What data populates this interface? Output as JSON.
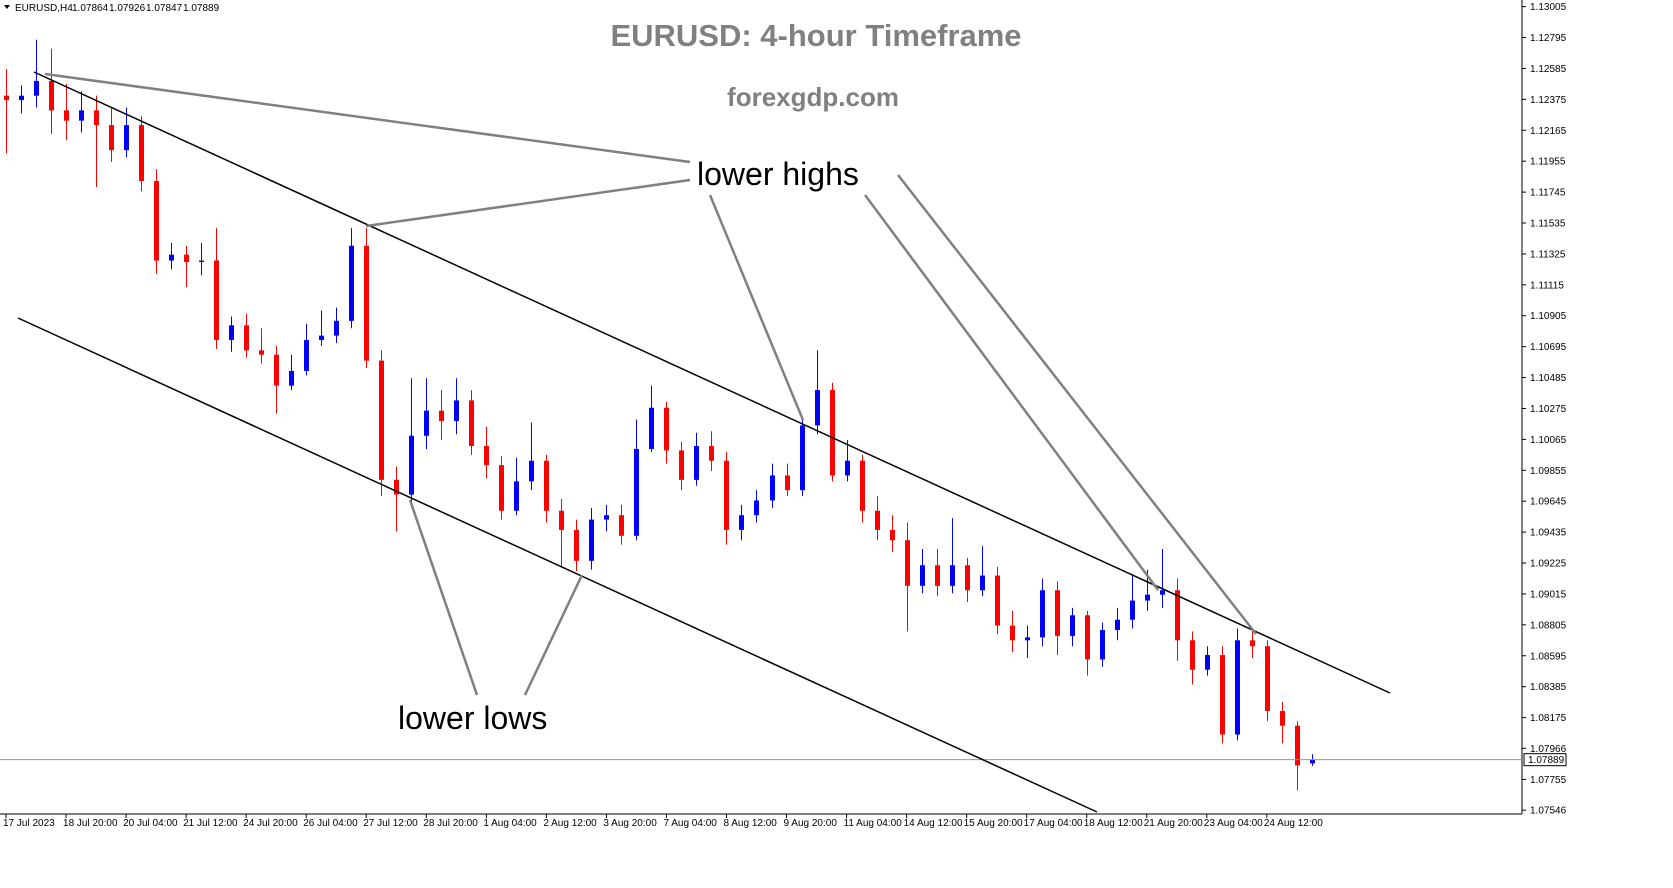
{
  "chart_data": {
    "type": "candlestick",
    "title": "EURUSD: 4-hour Timeframe",
    "subtitle": "forexgdp.com",
    "symbol": "EURUSD,H4",
    "annotations": [
      "lower highs",
      "lower lows"
    ],
    "up_color": "#0000ff",
    "down_color": "#ff0000",
    "ylim": [
      1.0752,
      1.1305
    ],
    "yticks": [
      1.13005,
      1.12795,
      1.12585,
      1.12375,
      1.12165,
      1.11955,
      1.11745,
      1.11535,
      1.11325,
      1.11115,
      1.10905,
      1.10695,
      1.10485,
      1.10275,
      1.10065,
      1.09855,
      1.09645,
      1.09435,
      1.09225,
      1.09015,
      1.08805,
      1.08595,
      1.08385,
      1.08175,
      1.07966,
      1.07755,
      1.07546
    ],
    "xlim": [
      -0.4,
      101
    ],
    "xticks": [
      {
        "value": 0,
        "label": "17 Jul 2023"
      },
      {
        "value": 4,
        "label": "18 Jul 20:00"
      },
      {
        "value": 8,
        "label": "20 Jul 04:00"
      },
      {
        "value": 12,
        "label": "21 Jul 12:00"
      },
      {
        "value": 16,
        "label": "24 Jul 20:00"
      },
      {
        "value": 20,
        "label": "26 Jul 04:00"
      },
      {
        "value": 24,
        "label": "27 Jul 12:00"
      },
      {
        "value": 28,
        "label": "28 Jul 20:00"
      },
      {
        "value": 32,
        "label": "1 Aug 04:00"
      },
      {
        "value": 36,
        "label": "2 Aug 12:00"
      },
      {
        "value": 40,
        "label": "3 Aug 20:00"
      },
      {
        "value": 44,
        "label": "7 Aug 04:00"
      },
      {
        "value": 48,
        "label": "8 Aug 12:00"
      },
      {
        "value": 52,
        "label": "9 Aug 20:00"
      },
      {
        "value": 56,
        "label": "11 Aug 04:00"
      },
      {
        "value": 60,
        "label": "14 Aug 12:00"
      },
      {
        "value": 64,
        "label": "15 Aug 20:00"
      },
      {
        "value": 68,
        "label": "17 Aug 04:00"
      },
      {
        "value": 72,
        "label": "18 Aug 12:00"
      },
      {
        "value": 76,
        "label": "21 Aug 20:00"
      },
      {
        "value": 80,
        "label": "23 Aug 04:00"
      },
      {
        "value": 84,
        "label": "24 Aug 12:00"
      }
    ],
    "candles": [
      [
        1.124,
        1.1258,
        1.1201,
        1.1237
      ],
      [
        1.1237,
        1.1247,
        1.1228,
        1.124
      ],
      [
        1.124,
        1.1278,
        1.1232,
        1.125
      ],
      [
        1.125,
        1.1272,
        1.1214,
        1.123
      ],
      [
        1.123,
        1.1248,
        1.121,
        1.1223
      ],
      [
        1.1223,
        1.1243,
        1.1215,
        1.123
      ],
      [
        1.123,
        1.124,
        1.1178,
        1.122
      ],
      [
        1.122,
        1.1232,
        1.1195,
        1.1203
      ],
      [
        1.1203,
        1.1232,
        1.1198,
        1.122
      ],
      [
        1.122,
        1.1226,
        1.1175,
        1.1182
      ],
      [
        1.1182,
        1.119,
        1.1119,
        1.1128
      ],
      [
        1.1128,
        1.114,
        1.1122,
        1.1132
      ],
      [
        1.1132,
        1.1138,
        1.111,
        1.1127
      ],
      [
        1.1127,
        1.114,
        1.1118,
        1.1128
      ],
      [
        1.1128,
        1.115,
        1.1068,
        1.1074
      ],
      [
        1.1074,
        1.109,
        1.1066,
        1.1084
      ],
      [
        1.1084,
        1.1092,
        1.1062,
        1.1067
      ],
      [
        1.1067,
        1.1082,
        1.1058,
        1.1064
      ],
      [
        1.1064,
        1.107,
        1.1024,
        1.1043
      ],
      [
        1.1043,
        1.1064,
        1.104,
        1.1053
      ],
      [
        1.1053,
        1.1085,
        1.105,
        1.1074
      ],
      [
        1.1074,
        1.1094,
        1.107,
        1.1077
      ],
      [
        1.1077,
        1.1096,
        1.1072,
        1.1087
      ],
      [
        1.1087,
        1.115,
        1.1082,
        1.1138
      ],
      [
        1.1138,
        1.115,
        1.1055,
        1.106
      ],
      [
        1.106,
        1.1067,
        1.0968,
        1.0979
      ],
      [
        1.0979,
        1.0988,
        1.0944,
        1.0969
      ],
      [
        1.0969,
        1.1048,
        1.0962,
        1.1009
      ],
      [
        1.1009,
        1.1048,
        1.1,
        1.1026
      ],
      [
        1.1026,
        1.104,
        1.1006,
        1.1019
      ],
      [
        1.1019,
        1.1048,
        1.101,
        1.1033
      ],
      [
        1.1033,
        1.104,
        1.0996,
        1.1002
      ],
      [
        1.1002,
        1.1015,
        1.098,
        1.0989
      ],
      [
        1.0989,
        1.0995,
        1.0952,
        1.0958
      ],
      [
        1.0958,
        1.0994,
        1.0955,
        1.0978
      ],
      [
        1.0978,
        1.1018,
        1.0972,
        1.0992
      ],
      [
        1.0992,
        1.0996,
        1.095,
        1.0958
      ],
      [
        1.0958,
        1.0966,
        1.092,
        1.0945
      ],
      [
        1.0945,
        1.0952,
        1.0917,
        1.0924
      ],
      [
        1.0924,
        1.096,
        1.0918,
        1.0952
      ],
      [
        1.0952,
        1.0962,
        1.0944,
        1.0955
      ],
      [
        1.0955,
        1.0962,
        1.0935,
        1.0941
      ],
      [
        1.0941,
        1.102,
        1.0938,
        1.1
      ],
      [
        1.1,
        1.1043,
        1.0998,
        1.1028
      ],
      [
        1.1028,
        1.1032,
        1.099,
        1.0999
      ],
      [
        1.0999,
        1.1005,
        1.0972,
        1.0979
      ],
      [
        1.0979,
        1.1011,
        1.0975,
        1.1002
      ],
      [
        1.1002,
        1.1012,
        1.0985,
        1.0992
      ],
      [
        1.0992,
        1.0998,
        1.0935,
        1.0945
      ],
      [
        1.0945,
        1.0962,
        1.0938,
        1.0955
      ],
      [
        1.0955,
        1.0972,
        1.095,
        1.0965
      ],
      [
        1.0965,
        1.099,
        1.096,
        1.0982
      ],
      [
        1.0982,
        1.099,
        1.0968,
        1.0972
      ],
      [
        1.0972,
        1.1022,
        1.0968,
        1.1016
      ],
      [
        1.1016,
        1.1067,
        1.101,
        1.104
      ],
      [
        1.104,
        1.1045,
        1.0978,
        1.0982
      ],
      [
        1.0982,
        1.1006,
        1.0978,
        1.0992
      ],
      [
        1.0992,
        1.0996,
        1.095,
        1.0958
      ],
      [
        1.0958,
        1.0968,
        1.0938,
        1.0945
      ],
      [
        1.0945,
        1.0955,
        1.093,
        1.0938
      ],
      [
        1.0938,
        1.095,
        1.0876,
        1.0907
      ],
      [
        1.0907,
        1.0932,
        1.0902,
        1.0921
      ],
      [
        1.0921,
        1.0932,
        1.09,
        1.0907
      ],
      [
        1.0907,
        1.0953,
        1.0902,
        1.0921
      ],
      [
        1.0921,
        1.0926,
        1.0896,
        1.0904
      ],
      [
        1.0904,
        1.0934,
        1.09,
        1.0914
      ],
      [
        1.0914,
        1.092,
        1.0874,
        1.088
      ],
      [
        1.088,
        1.089,
        1.0862,
        1.087
      ],
      [
        1.087,
        1.088,
        1.0858,
        1.0872
      ],
      [
        1.0872,
        1.0912,
        1.0866,
        1.0904
      ],
      [
        1.0904,
        1.091,
        1.086,
        1.0873
      ],
      [
        1.0873,
        1.0892,
        1.0866,
        1.0887
      ],
      [
        1.0887,
        1.089,
        1.0846,
        1.0857
      ],
      [
        1.0857,
        1.0882,
        1.0852,
        1.0877
      ],
      [
        1.0877,
        1.0892,
        1.087,
        1.0884
      ],
      [
        1.0884,
        1.0915,
        1.0878,
        1.0897
      ],
      [
        1.0897,
        1.0918,
        1.089,
        1.0901
      ],
      [
        1.0901,
        1.0932,
        1.0892,
        1.0904
      ],
      [
        1.0904,
        1.0912,
        1.0856,
        1.087
      ],
      [
        1.087,
        1.0876,
        1.084,
        1.085
      ],
      [
        1.085,
        1.0866,
        1.0846,
        1.086
      ],
      [
        1.086,
        1.0866,
        1.08,
        1.0806
      ],
      [
        1.0806,
        1.0878,
        1.0802,
        1.087
      ],
      [
        1.087,
        1.0878,
        1.0858,
        1.0866
      ],
      [
        1.0866,
        1.087,
        1.0815,
        1.0822
      ],
      [
        1.0822,
        1.0828,
        1.08,
        1.0812
      ],
      [
        1.0812,
        1.0815,
        1.0768,
        1.0785
      ],
      [
        1.07864,
        1.07926,
        1.07847,
        1.07889
      ]
    ]
  }
}
